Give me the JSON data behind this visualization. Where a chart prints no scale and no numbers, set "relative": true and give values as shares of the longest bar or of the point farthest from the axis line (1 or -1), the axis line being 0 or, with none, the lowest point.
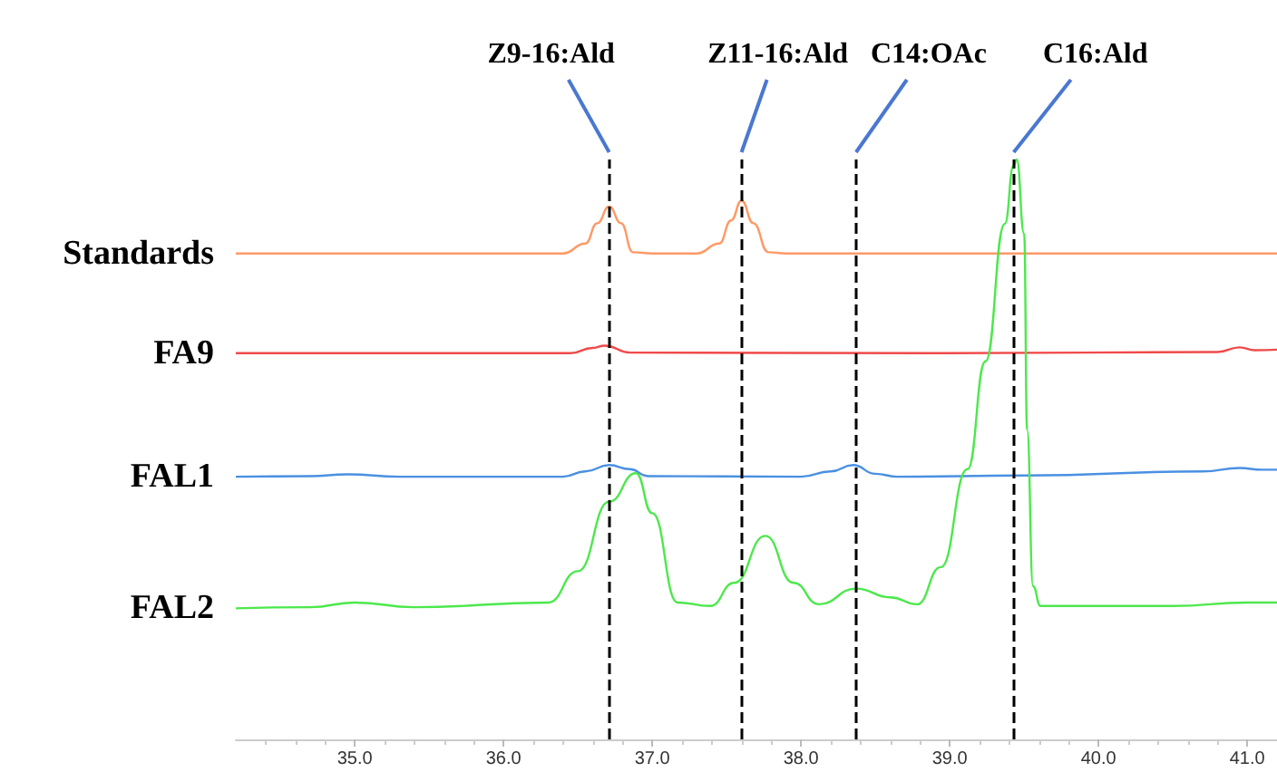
{
  "chart_data": {
    "type": "line",
    "relative": true,
    "grid": false,
    "legend": false,
    "marker": "none",
    "line_style": "solid",
    "xlim": [
      34.2,
      41.2
    ],
    "xticks": [
      {
        "value": 35,
        "label": "35.0"
      },
      {
        "value": 36,
        "label": "36.0"
      },
      {
        "value": 37,
        "label": "37.0"
      },
      {
        "value": 38,
        "label": "38.0"
      },
      {
        "value": 39,
        "label": "39.0"
      },
      {
        "value": 40,
        "label": "40.0"
      },
      {
        "value": 41,
        "label": "41.0"
      }
    ],
    "series": [
      {
        "name": "Standards",
        "color": "#ff9966",
        "x": [
          34.2,
          36.4,
          36.55,
          36.63,
          36.71,
          36.79,
          36.87,
          37.0,
          37.3,
          37.45,
          37.53,
          37.6,
          37.68,
          37.78,
          37.9,
          41.2
        ],
        "values": [
          0.838,
          0.838,
          0.855,
          0.89,
          0.919,
          0.89,
          0.84,
          0.838,
          0.838,
          0.855,
          0.895,
          0.929,
          0.89,
          0.84,
          0.838,
          0.838
        ]
      },
      {
        "name": "FA9",
        "color": "#f04a4a",
        "x": [
          34.2,
          36.45,
          36.6,
          36.68,
          36.85,
          39.0,
          40.8,
          40.95,
          41.05,
          41.2
        ],
        "values": [
          0.666,
          0.666,
          0.675,
          0.679,
          0.667,
          0.666,
          0.668,
          0.676,
          0.671,
          0.672
        ]
      },
      {
        "name": "FAL1",
        "color": "#4a90e2",
        "x": [
          34.2,
          34.7,
          34.95,
          35.3,
          36.4,
          36.55,
          36.71,
          36.85,
          36.97,
          38.0,
          38.2,
          38.35,
          38.5,
          38.65,
          39.5,
          40.7,
          40.95,
          41.1,
          41.2
        ],
        "values": [
          0.453,
          0.454,
          0.457,
          0.453,
          0.453,
          0.462,
          0.473,
          0.466,
          0.454,
          0.453,
          0.462,
          0.473,
          0.458,
          0.453,
          0.455,
          0.462,
          0.468,
          0.465,
          0.465
        ]
      },
      {
        "name": "FAL2",
        "color": "#4ce84c",
        "x": [
          34.2,
          34.7,
          35.0,
          35.4,
          36.3,
          36.5,
          36.71,
          36.89,
          37.0,
          37.17,
          37.39,
          37.55,
          37.76,
          37.95,
          38.12,
          38.37,
          38.6,
          38.78,
          38.94,
          39.12,
          39.24,
          39.37,
          39.43,
          39.45,
          39.5,
          39.52,
          39.56,
          39.61,
          40.5,
          41.0,
          41.2
        ],
        "values": [
          0.226,
          0.228,
          0.236,
          0.228,
          0.236,
          0.29,
          0.41,
          0.459,
          0.39,
          0.236,
          0.23,
          0.27,
          0.351,
          0.27,
          0.233,
          0.26,
          0.245,
          0.233,
          0.297,
          0.466,
          0.652,
          0.889,
          0.99,
          1.0,
          0.872,
          0.534,
          0.264,
          0.23,
          0.23,
          0.236,
          0.236
        ]
      }
    ],
    "ref_lines": [
      {
        "axis": "x",
        "value": 36.71,
        "label": "Z9-16:Ald",
        "color": "#000000",
        "line_style": "dashed"
      },
      {
        "axis": "x",
        "value": 37.6,
        "label": "Z11-16:Ald",
        "color": "#000000",
        "line_style": "dashed"
      },
      {
        "axis": "x",
        "value": 38.37,
        "label": "C14:OAc",
        "color": "#000000",
        "line_style": "dashed"
      },
      {
        "axis": "x",
        "value": 39.43,
        "label": "C16:Ald",
        "color": "#000000",
        "line_style": "dashed"
      }
    ]
  }
}
